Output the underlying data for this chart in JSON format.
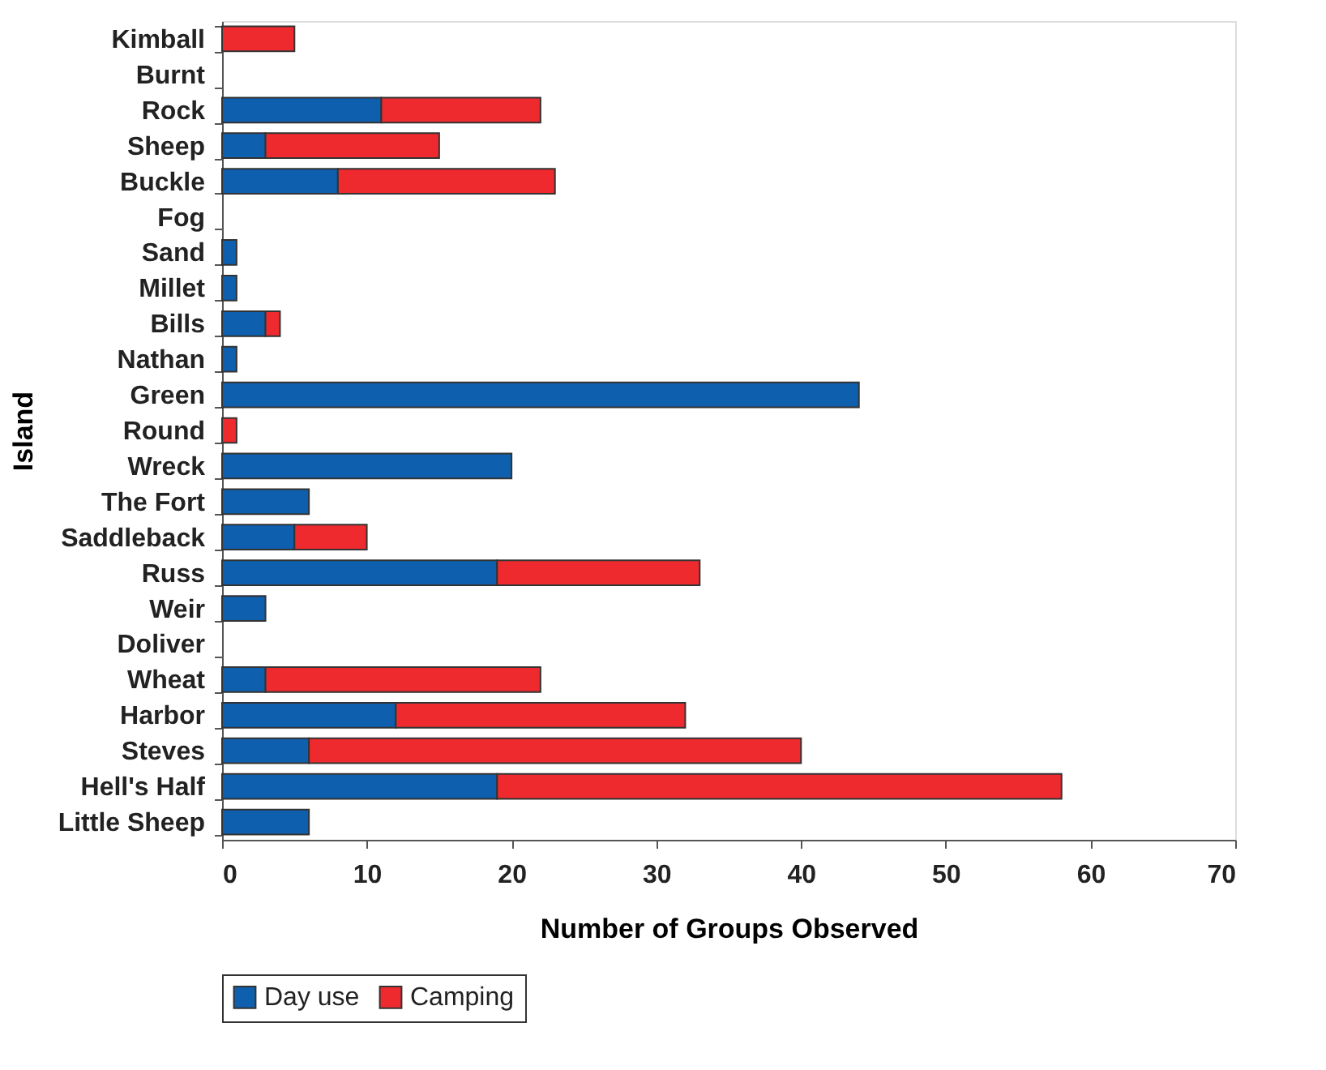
{
  "chart_data": {
    "type": "bar",
    "orientation": "horizontal",
    "stacked": true,
    "xlabel": "Number of Groups Observed",
    "ylabel": "Island",
    "categories": [
      "Kimball",
      "Burnt",
      "Rock",
      "Sheep",
      "Buckle",
      "Fog",
      "Sand",
      "Millet",
      "Bills",
      "Nathan",
      "Green",
      "Round",
      "Wreck",
      "The Fort",
      "Saddleback",
      "Russ",
      "Weir",
      "Doliver",
      "Wheat",
      "Harbor",
      "Steves",
      "Hell's Half",
      "Little Sheep"
    ],
    "series": [
      {
        "name": "Day use",
        "color": "#0e5fad",
        "values": [
          0,
          0,
          11,
          3,
          8,
          0,
          1,
          1,
          3,
          1,
          44,
          0,
          20,
          6,
          5,
          19,
          3,
          0,
          3,
          12,
          6,
          19,
          6
        ]
      },
      {
        "name": "Camping",
        "color": "#ee2a2f",
        "values": [
          5,
          0,
          11,
          12,
          15,
          0,
          0,
          0,
          1,
          0,
          0,
          1,
          0,
          0,
          5,
          14,
          0,
          0,
          19,
          20,
          34,
          39,
          0
        ]
      }
    ],
    "xlim": [
      0,
      70
    ],
    "xticks": [
      0,
      10,
      20,
      30,
      40,
      50,
      60,
      70
    ],
    "grid": false,
    "legend": "bottom"
  }
}
